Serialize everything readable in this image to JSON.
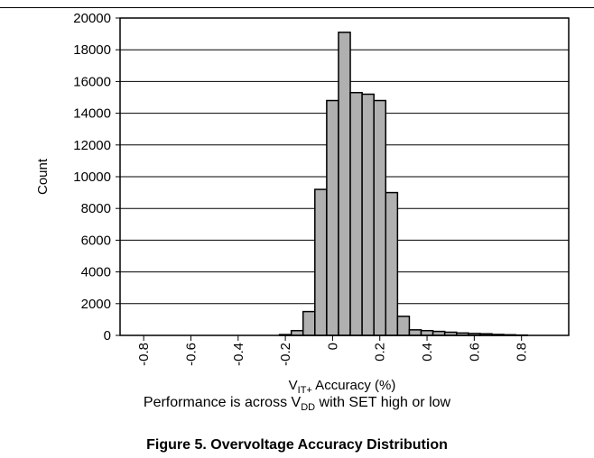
{
  "chart_data": {
    "type": "bar",
    "xlabel": {
      "prefix": "V",
      "sub": "IT+",
      "suffix": " Accuracy (%)"
    },
    "ylabel": "Count",
    "ylim": [
      0,
      20000
    ],
    "yticks": [
      0,
      2000,
      4000,
      6000,
      8000,
      10000,
      12000,
      14000,
      16000,
      18000,
      20000
    ],
    "xlim": [
      -0.9,
      1.0
    ],
    "xticks": [
      "-0.8",
      "-0.6",
      "-0.4",
      "-0.2",
      "0",
      "0.2",
      "0.4",
      "0.6",
      "0.8"
    ],
    "bin_width": 0.05,
    "bins": [
      {
        "x": -0.25,
        "value": 0
      },
      {
        "x": -0.2,
        "value": 50
      },
      {
        "x": -0.15,
        "value": 300
      },
      {
        "x": -0.1,
        "value": 1500
      },
      {
        "x": -0.05,
        "value": 9200
      },
      {
        "x": 0.0,
        "value": 14800
      },
      {
        "x": 0.05,
        "value": 19100
      },
      {
        "x": 0.1,
        "value": 15300
      },
      {
        "x": 0.15,
        "value": 15200
      },
      {
        "x": 0.2,
        "value": 14800
      },
      {
        "x": 0.25,
        "value": 9000
      },
      {
        "x": 0.3,
        "value": 1200
      },
      {
        "x": 0.35,
        "value": 350
      },
      {
        "x": 0.4,
        "value": 300
      },
      {
        "x": 0.45,
        "value": 250
      },
      {
        "x": 0.5,
        "value": 200
      },
      {
        "x": 0.55,
        "value": 150
      },
      {
        "x": 0.6,
        "value": 120
      },
      {
        "x": 0.65,
        "value": 100
      },
      {
        "x": 0.7,
        "value": 60
      },
      {
        "x": 0.75,
        "value": 40
      },
      {
        "x": 0.8,
        "value": 20
      }
    ],
    "grid": "horizontal",
    "bar_color": "#b0b0b0",
    "bar_edge": "#000000"
  },
  "note": {
    "prefix": "Performance is across V",
    "sub": "DD",
    "suffix": " with SET high or low"
  },
  "caption": "Figure 5. Overvoltage Accuracy Distribution"
}
